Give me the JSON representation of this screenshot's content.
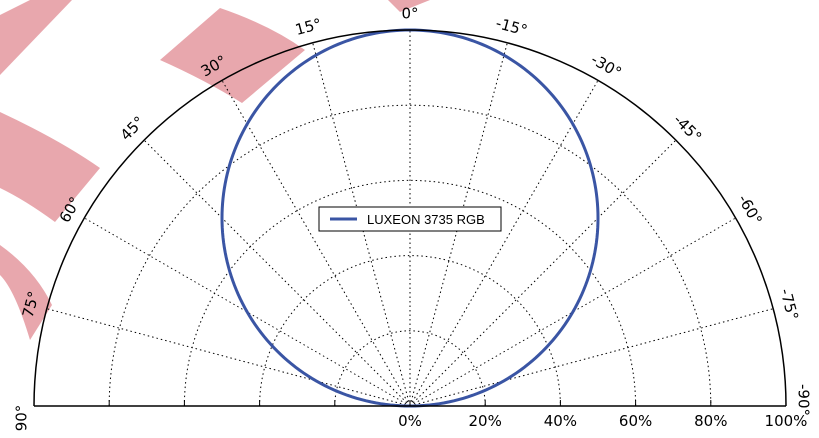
{
  "chart_data": {
    "type": "polar",
    "legend_position": "center",
    "grid": true,
    "angle_range_deg": [
      -90,
      90
    ],
    "angle_ticks": [
      {
        "deg": 0,
        "label": "0°"
      },
      {
        "deg": -15,
        "label": "-15°"
      },
      {
        "deg": -30,
        "label": "-30°"
      },
      {
        "deg": -45,
        "label": "-45°"
      },
      {
        "deg": -60,
        "label": "-60°"
      },
      {
        "deg": -75,
        "label": "-75°"
      },
      {
        "deg": -90,
        "label": "-90°"
      },
      {
        "deg": 15,
        "label": "15°"
      },
      {
        "deg": 30,
        "label": "30°"
      },
      {
        "deg": 45,
        "label": "45°"
      },
      {
        "deg": 60,
        "label": "60°"
      },
      {
        "deg": 75,
        "label": "75°"
      },
      {
        "deg": 90,
        "label": "90°"
      }
    ],
    "radial_range": [
      0,
      100
    ],
    "radial_ticks": [
      {
        "value": 0,
        "label": "0%"
      },
      {
        "value": 20,
        "label": "20%"
      },
      {
        "value": 40,
        "label": "40%"
      },
      {
        "value": 60,
        "label": "60%"
      },
      {
        "value": 80,
        "label": "80%"
      },
      {
        "value": 100,
        "label": "100%"
      }
    ],
    "series": [
      {
        "name": "LUXEON 3735 RGB",
        "color": "#3a55a4",
        "shape": "lambertian",
        "theta_deg": [
          -90,
          -75,
          -60,
          -45,
          -30,
          -15,
          0,
          15,
          30,
          45,
          60,
          75,
          90
        ],
        "r": [
          0,
          25.9,
          50,
          70.7,
          86.6,
          96.6,
          100,
          96.6,
          86.6,
          70.7,
          50,
          25.9,
          0
        ]
      }
    ]
  },
  "watermark": {
    "color": "#e8a7ad"
  }
}
